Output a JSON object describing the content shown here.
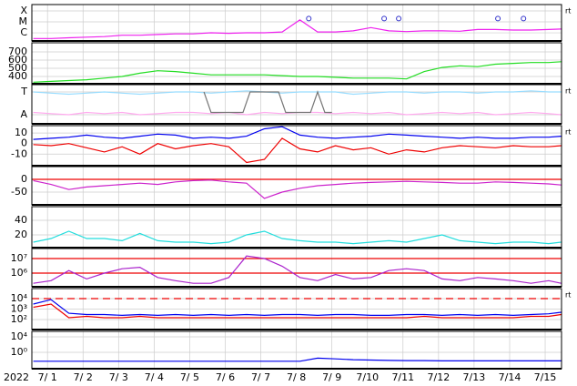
{
  "x_axis": {
    "label": "2022",
    "x": [
      1.1,
      1.6,
      2.1,
      2.6,
      3.1,
      3.6,
      4.1,
      4.6,
      5.1,
      5.6,
      6.1,
      6.6,
      7.1,
      7.6,
      8.1,
      8.6,
      9.1,
      9.6,
      10.1,
      10.6,
      11.1,
      11.6,
      12.1,
      12.6,
      13.1,
      13.6,
      14.1,
      14.6,
      15.1,
      15.6,
      15.95
    ],
    "xlim": [
      1.06,
      15.96
    ],
    "xticks": [
      {
        "value": 1.5,
        "label": "7/ 1"
      },
      {
        "value": 2.5,
        "label": "7/ 2"
      },
      {
        "value": 3.5,
        "label": "7/ 3"
      },
      {
        "value": 4.5,
        "label": "7/ 4"
      },
      {
        "value": 5.5,
        "label": "7/ 5"
      },
      {
        "value": 6.5,
        "label": "7/ 6"
      },
      {
        "value": 7.5,
        "label": "7/ 7"
      },
      {
        "value": 8.5,
        "label": "7/ 8"
      },
      {
        "value": 9.5,
        "label": "7/ 9"
      },
      {
        "value": 10.5,
        "label": "7/10"
      },
      {
        "value": 11.5,
        "label": "7/11"
      },
      {
        "value": 12.5,
        "label": "7/12"
      },
      {
        "value": 13.5,
        "label": "7/13"
      },
      {
        "value": 14.5,
        "label": "7/14"
      },
      {
        "value": 15.5,
        "label": "7/15"
      }
    ],
    "grid": true
  },
  "chart_data": [
    {
      "type": "line",
      "log": true,
      "ylim": [
        1.8e-07,
        0.00038
      ],
      "side_label": "rt",
      "yticks": [
        {
          "value": 0.0001,
          "label": "X"
        },
        {
          "value": 1e-05,
          "label": "M"
        },
        {
          "value": 1e-06,
          "label": "C"
        }
      ],
      "series": [
        {
          "color": "#ee22ee",
          "values": [
            3e-07,
            3e-07,
            3.5e-07,
            4e-07,
            4.5e-07,
            6e-07,
            6e-07,
            7e-07,
            8e-07,
            8e-07,
            1e-06,
            9e-07,
            1e-06,
            1e-06,
            1.2e-06,
            1.5e-05,
            1.2e-06,
            1.2e-06,
            1.5e-06,
            3e-06,
            1.5e-06,
            1.3e-06,
            1.5e-06,
            1.5e-06,
            1.4e-06,
            2e-06,
            2e-06,
            1.8e-06,
            1.8e-06,
            2e-06,
            2.2e-06
          ]
        }
      ],
      "markers": {
        "color": "#3333cc",
        "x": [
          8.85,
          10.97,
          11.38,
          14.17,
          14.89
        ],
        "values": [
          2e-05,
          2e-05,
          2e-05,
          2e-05,
          2e-05
        ]
      }
    },
    {
      "type": "line",
      "ylim": [
        311,
        811
      ],
      "yticks": [
        700,
        600,
        500,
        400
      ],
      "series": [
        {
          "color": "#22dd22",
          "values": [
            330,
            340,
            350,
            360,
            380,
            400,
            440,
            470,
            460,
            440,
            420,
            420,
            420,
            420,
            410,
            400,
            400,
            390,
            380,
            380,
            380,
            370,
            460,
            510,
            530,
            520,
            550,
            560,
            570,
            570,
            580
          ]
        }
      ]
    },
    {
      "type": "line",
      "ylim": [
        -0.4,
        1.32
      ],
      "side_label": "rt",
      "yticks": [
        {
          "value": 1,
          "label": "T"
        },
        {
          "value": 0,
          "label": "A"
        }
      ],
      "series": [
        {
          "color": "#99ddff",
          "values": [
            1.0,
            0.95,
            0.9,
            0.95,
            1.0,
            0.95,
            0.9,
            0.95,
            1.0,
            1.0,
            0.95,
            1.0,
            1.05,
            1.0,
            0.95,
            1.0,
            1.0,
            1.0,
            0.9,
            0.95,
            1.0,
            1.0,
            0.95,
            1.0,
            1.0,
            0.95,
            1.0,
            1.0,
            1.05,
            1.0,
            1.0
          ]
        },
        {
          "color": "#ffaaee",
          "values": [
            0.1,
            0.05,
            0.0,
            0.1,
            0.05,
            0.1,
            0.0,
            0.05,
            0.1,
            0.1,
            0.05,
            0.1,
            0.0,
            0.1,
            0.05,
            0.1,
            0.1,
            0.05,
            0.1,
            0.05,
            0.1,
            0.0,
            0.05,
            0.1,
            0.05,
            0.1,
            0.0,
            0.05,
            0.1,
            0.05,
            0.0
          ]
        },
        {
          "color": "#777777",
          "x": [
            5.9,
            6.1,
            7.0,
            7.2,
            8.0,
            8.2,
            8.9,
            9.1,
            9.3,
            9.5
          ],
          "values": [
            1,
            0.1,
            0.1,
            1,
            1,
            0.1,
            0.1,
            1,
            0.1,
            0.1
          ]
        }
      ]
    },
    {
      "type": "line",
      "ylim": [
        -21,
        17
      ],
      "yticks": [
        10,
        0,
        -10
      ],
      "side_label": "rt",
      "series": [
        {
          "color": "#0000ee",
          "values": [
            4,
            5,
            6,
            8,
            6,
            5,
            7,
            9,
            8,
            5,
            6,
            5,
            7,
            14,
            16,
            8,
            6,
            5,
            6,
            7,
            9,
            8,
            7,
            6,
            5,
            6,
            5,
            5,
            6,
            6,
            7
          ]
        },
        {
          "color": "#ee0000",
          "values": [
            -1,
            -2,
            0,
            -4,
            -8,
            -3,
            -10,
            0,
            -5,
            -2,
            0,
            -3,
            -18,
            -15,
            5,
            -5,
            -8,
            -2,
            -6,
            -4,
            -10,
            -6,
            -8,
            -4,
            -2,
            -3,
            -4,
            -2,
            -3,
            -3,
            -2
          ]
        }
      ]
    },
    {
      "type": "line",
      "ylim": [
        -100,
        50
      ],
      "yticks": [
        0,
        -50
      ],
      "hlines": [
        {
          "value": 0,
          "color": "#ee0000"
        }
      ],
      "series": [
        {
          "color": "#cc22cc",
          "values": [
            -5,
            -20,
            -40,
            -30,
            -25,
            -20,
            -15,
            -20,
            -10,
            -5,
            -3,
            -10,
            -15,
            -75,
            -50,
            -35,
            -25,
            -20,
            -15,
            -12,
            -10,
            -8,
            -10,
            -12,
            -15,
            -15,
            -10,
            -12,
            -15,
            -18,
            -22
          ]
        }
      ]
    },
    {
      "type": "line",
      "ylim": [
        2.5,
        58.75
      ],
      "yticks": [
        40,
        20
      ],
      "series": [
        {
          "color": "#22dddd",
          "values": [
            10,
            15,
            25,
            15,
            15,
            12,
            22,
            12,
            10,
            10,
            8,
            10,
            20,
            25,
            15,
            12,
            10,
            10,
            8,
            10,
            12,
            10,
            15,
            20,
            12,
            10,
            8,
            10,
            10,
            8,
            10
          ]
        }
      ]
    },
    {
      "type": "line",
      "log": true,
      "ylim": [
        115000.0,
        49000000.0
      ],
      "yticks": [
        {
          "value": 10000000.0,
          "label": "10⁷"
        },
        {
          "value": 1000000.0,
          "label": "10⁶"
        }
      ],
      "hlines": [
        {
          "value": 10000000.0,
          "color": "#ee0000"
        },
        {
          "value": 1000000.0,
          "color": "#ee0000"
        }
      ],
      "series": [
        {
          "color": "#aa22cc",
          "values": [
            200000.0,
            300000.0,
            1500000.0,
            400000.0,
            1000000.0,
            2000000.0,
            2500000.0,
            500000.0,
            300000.0,
            200000.0,
            200000.0,
            500000.0,
            15000000.0,
            10000000.0,
            3000000.0,
            500000.0,
            300000.0,
            800000.0,
            400000.0,
            500000.0,
            1500000.0,
            2000000.0,
            1500000.0,
            400000.0,
            300000.0,
            500000.0,
            400000.0,
            300000.0,
            200000.0,
            300000.0,
            200000.0
          ]
        }
      ]
    },
    {
      "type": "line",
      "log": true,
      "ylim": [
        11,
        91000
      ],
      "side_label": "rt",
      "yticks": [
        {
          "value": 10000.0,
          "label": "10⁴"
        },
        {
          "value": 1000.0,
          "label": "10³"
        },
        {
          "value": 100,
          "label": "10²"
        }
      ],
      "hlines": [
        {
          "value": 10000.0,
          "color": "#ee0000",
          "dashed": true
        }
      ],
      "series": [
        {
          "color": "#0000ee",
          "values": [
            3000,
            8000,
            400,
            300,
            300,
            250,
            300,
            250,
            300,
            250,
            300,
            250,
            300,
            250,
            300,
            300,
            250,
            300,
            300,
            250,
            250,
            300,
            300,
            250,
            300,
            250,
            300,
            250,
            300,
            350,
            500
          ]
        },
        {
          "color": "#ee0000",
          "values": [
            1500,
            3000,
            150,
            200,
            150,
            150,
            200,
            150,
            150,
            150,
            150,
            150,
            150,
            150,
            150,
            150,
            150,
            150,
            150,
            150,
            150,
            150,
            200,
            150,
            150,
            150,
            150,
            150,
            200,
            200,
            300
          ]
        }
      ]
    },
    {
      "type": "line",
      "log": true,
      "ylim": [
        5.7e-05,
        260000.0
      ],
      "yticks": [
        {
          "value": 10000.0,
          "label": "10⁴"
        },
        {
          "value": 1,
          "label": "10⁰"
        }
      ],
      "series": [
        {
          "color": "#0000ee",
          "values": [
            0.005,
            0.005,
            0.005,
            0.005,
            0.005,
            0.005,
            0.005,
            0.005,
            0.005,
            0.005,
            0.005,
            0.005,
            0.005,
            0.005,
            0.005,
            0.005,
            0.03,
            0.02,
            0.012,
            0.01,
            0.008,
            0.007,
            0.007,
            0.006,
            0.006,
            0.006,
            0.006,
            0.006,
            0.006,
            0.006,
            0.006
          ]
        }
      ]
    }
  ]
}
